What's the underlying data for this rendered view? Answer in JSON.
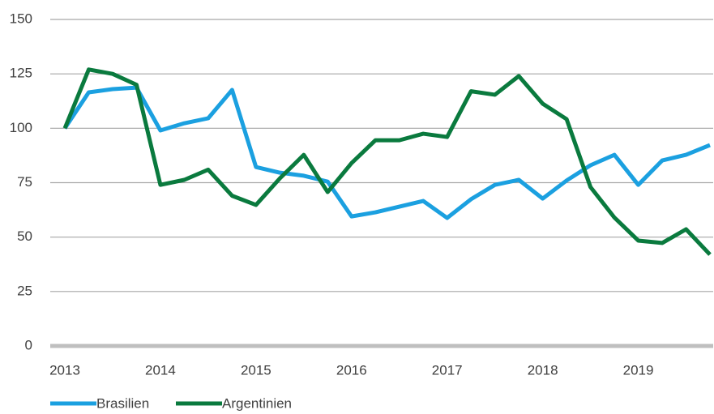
{
  "chart_data": {
    "type": "line",
    "x": [
      2013,
      2013.25,
      2013.5,
      2013.75,
      2014,
      2014.25,
      2014.5,
      2014.75,
      2015,
      2015.25,
      2015.5,
      2015.75,
      2016,
      2016.25,
      2016.5,
      2016.75,
      2017,
      2017.25,
      2017.5,
      2017.75,
      2018,
      2018.25,
      2018.5,
      2018.75,
      2019,
      2019.25,
      2019.5,
      2019.75
    ],
    "series": [
      {
        "name": "Brasilien",
        "color": "#1ba0e0",
        "values": [
          100,
          116.5,
          118,
          118.7,
          99,
          102.3,
          104.6,
          117.6,
          82.2,
          79.6,
          78.2,
          75.5,
          59.5,
          61.4,
          64,
          66.6,
          58.8,
          67.4,
          74,
          76.3,
          67.7,
          76,
          83,
          87.8,
          74,
          85.2,
          87.8,
          92.3
        ]
      },
      {
        "name": "Argentinien",
        "color": "#0a7a3e",
        "values": [
          100,
          127,
          125,
          120,
          74,
          76.3,
          81,
          69,
          64.8,
          77,
          87.8,
          70.7,
          84,
          94.5,
          94.5,
          97.5,
          96,
          117,
          115.4,
          124,
          111.3,
          104.2,
          73,
          59,
          48.4,
          47.3,
          53.6,
          42
        ]
      }
    ],
    "xlim": [
      2013,
      2019.75
    ],
    "xticks": [
      2013,
      2014,
      2015,
      2016,
      2017,
      2018,
      2019
    ],
    "ylim": [
      0,
      150
    ],
    "yticks": [
      0,
      25,
      50,
      75,
      100,
      125,
      150
    ],
    "grid": true,
    "legend": "bottom"
  }
}
